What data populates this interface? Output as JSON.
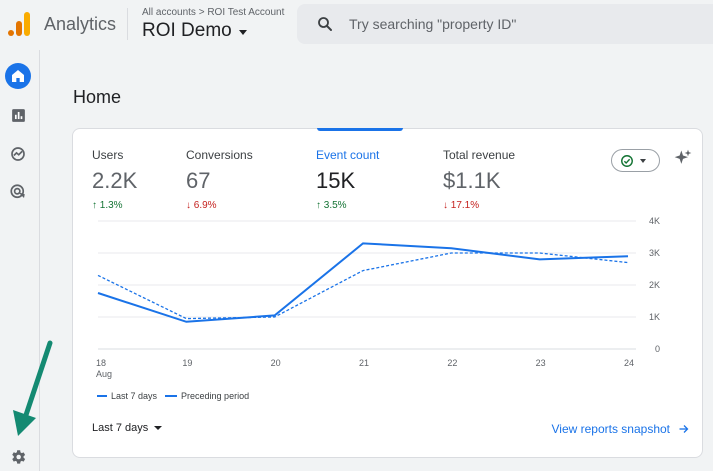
{
  "header": {
    "app_title": "Analytics",
    "breadcrumb": "All accounts > ROI Test Account",
    "property_name": "ROI Demo",
    "search_placeholder": "Try searching \"property ID\""
  },
  "sidebar": {
    "items": [
      {
        "name": "home",
        "icon": "home-icon",
        "active": true
      },
      {
        "name": "reports",
        "icon": "bar-chart-icon",
        "active": false
      },
      {
        "name": "explore",
        "icon": "explore-icon",
        "active": false
      },
      {
        "name": "advertising",
        "icon": "target-icon",
        "active": false
      },
      {
        "name": "admin",
        "icon": "gear-icon",
        "active": false
      }
    ]
  },
  "main": {
    "page_title": "Home",
    "metrics": [
      {
        "label": "Users",
        "value": "2.2K",
        "change": "1.3%",
        "direction": "up"
      },
      {
        "label": "Conversions",
        "value": "67",
        "change": "6.9%",
        "direction": "down"
      },
      {
        "label": "Event count",
        "value": "15K",
        "change": "3.5%",
        "direction": "up"
      },
      {
        "label": "Total revenue",
        "value": "$1.1K",
        "change": "17.1%",
        "direction": "down"
      }
    ],
    "date_range": "Last 7 days",
    "view_link": "View reports snapshot"
  },
  "colors": {
    "accent": "#1a73e8",
    "up": "#137333",
    "down": "#c5221f",
    "annotation_arrow": "#148a72"
  },
  "chart_data": {
    "type": "line",
    "x": [
      "18",
      "19",
      "20",
      "21",
      "22",
      "23",
      "24"
    ],
    "x_sublabel": "Aug",
    "y_ticks": [
      "0",
      "1K",
      "2K",
      "3K",
      "4K"
    ],
    "ylim": [
      0,
      4000
    ],
    "series": [
      {
        "name": "Last 7 days",
        "style": "solid",
        "values": [
          1750,
          850,
          1050,
          3300,
          3150,
          2800,
          2900
        ]
      },
      {
        "name": "Preceding period",
        "style": "dashed",
        "values": [
          2300,
          950,
          1000,
          2450,
          3000,
          3000,
          2700
        ]
      }
    ]
  }
}
